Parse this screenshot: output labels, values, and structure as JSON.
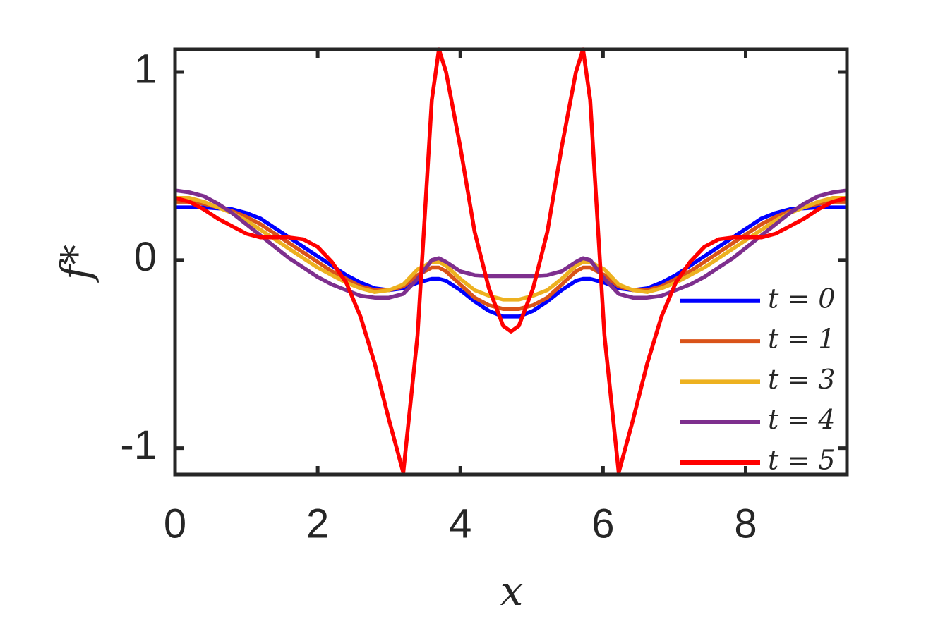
{
  "chart_data": {
    "type": "line",
    "xlabel": "x",
    "ylabel": "f*",
    "x": [
      0,
      0.2,
      0.4,
      0.6,
      0.8,
      1.0,
      1.2,
      1.4,
      1.6,
      1.8,
      2.0,
      2.2,
      2.4,
      2.6,
      2.8,
      3.0,
      3.2,
      3.4,
      3.6,
      3.7,
      3.8,
      4.0,
      4.2,
      4.4,
      4.6,
      4.71,
      4.82,
      5.02,
      5.22,
      5.42,
      5.62,
      5.72,
      5.82,
      6.02,
      6.22,
      6.42,
      6.62,
      6.82,
      7.02,
      7.22,
      7.42,
      7.62,
      7.82,
      8.02,
      8.22,
      8.42,
      8.62,
      8.82,
      9.02,
      9.22,
      9.42
    ],
    "series": [
      {
        "name": "t = 0",
        "color": "#0000ff",
        "values": [
          0.28,
          0.28,
          0.28,
          0.275,
          0.27,
          0.25,
          0.22,
          0.17,
          0.12,
          0.07,
          0.02,
          -0.03,
          -0.08,
          -0.12,
          -0.15,
          -0.16,
          -0.15,
          -0.12,
          -0.1,
          -0.1,
          -0.11,
          -0.16,
          -0.22,
          -0.27,
          -0.3,
          -0.3,
          -0.3,
          -0.27,
          -0.22,
          -0.16,
          -0.11,
          -0.1,
          -0.1,
          -0.12,
          -0.15,
          -0.16,
          -0.15,
          -0.12,
          -0.08,
          -0.03,
          0.02,
          0.07,
          0.12,
          0.17,
          0.22,
          0.25,
          0.27,
          0.275,
          0.28,
          0.28,
          0.28
        ]
      },
      {
        "name": "t = 1",
        "color": "#d95319",
        "values": [
          0.31,
          0.31,
          0.3,
          0.28,
          0.26,
          0.23,
          0.19,
          0.14,
          0.09,
          0.04,
          -0.01,
          -0.06,
          -0.1,
          -0.14,
          -0.16,
          -0.16,
          -0.14,
          -0.08,
          -0.04,
          -0.04,
          -0.06,
          -0.13,
          -0.2,
          -0.24,
          -0.26,
          -0.26,
          -0.26,
          -0.24,
          -0.2,
          -0.13,
          -0.06,
          -0.04,
          -0.04,
          -0.08,
          -0.14,
          -0.16,
          -0.16,
          -0.14,
          -0.1,
          -0.06,
          -0.01,
          0.04,
          0.09,
          0.14,
          0.19,
          0.23,
          0.26,
          0.28,
          0.3,
          0.31,
          0.31
        ]
      },
      {
        "name": "t = 3",
        "color": "#edb120",
        "values": [
          0.33,
          0.33,
          0.31,
          0.28,
          0.25,
          0.21,
          0.16,
          0.11,
          0.06,
          0.01,
          -0.04,
          -0.08,
          -0.12,
          -0.15,
          -0.17,
          -0.16,
          -0.13,
          -0.05,
          -0.01,
          -0.01,
          -0.03,
          -0.1,
          -0.16,
          -0.19,
          -0.21,
          -0.21,
          -0.21,
          -0.19,
          -0.16,
          -0.1,
          -0.03,
          -0.01,
          -0.01,
          -0.05,
          -0.13,
          -0.16,
          -0.17,
          -0.15,
          -0.12,
          -0.08,
          -0.04,
          0.01,
          0.06,
          0.11,
          0.16,
          0.21,
          0.25,
          0.28,
          0.31,
          0.33,
          0.33
        ]
      },
      {
        "name": "t = 4",
        "color": "#7e2f8e",
        "values": [
          0.37,
          0.36,
          0.34,
          0.3,
          0.25,
          0.19,
          0.13,
          0.07,
          0.01,
          -0.04,
          -0.09,
          -0.13,
          -0.16,
          -0.19,
          -0.2,
          -0.2,
          -0.18,
          -0.1,
          0,
          0.01,
          -0.01,
          -0.06,
          -0.08,
          -0.085,
          -0.085,
          -0.085,
          -0.085,
          -0.085,
          -0.08,
          -0.06,
          -0.01,
          0.01,
          0,
          -0.1,
          -0.18,
          -0.2,
          -0.2,
          -0.19,
          -0.16,
          -0.13,
          -0.09,
          -0.04,
          0.01,
          0.07,
          0.13,
          0.19,
          0.25,
          0.3,
          0.34,
          0.36,
          0.37
        ]
      },
      {
        "name": "t = 5",
        "color": "#ff0000",
        "values": [
          0.33,
          0.31,
          0.27,
          0.22,
          0.18,
          0.14,
          0.12,
          0.12,
          0.12,
          0.11,
          0.07,
          -0.01,
          -0.12,
          -0.3,
          -0.55,
          -0.85,
          -1.13,
          -0.4,
          0.85,
          1.12,
          1.0,
          0.6,
          0.15,
          -0.15,
          -0.35,
          -0.38,
          -0.35,
          -0.15,
          0.15,
          0.6,
          1.0,
          1.12,
          0.85,
          -0.4,
          -1.13,
          -0.85,
          -0.55,
          -0.3,
          -0.12,
          -0.01,
          0.07,
          0.11,
          0.12,
          0.12,
          0.12,
          0.14,
          0.18,
          0.22,
          0.27,
          0.31,
          0.33
        ]
      }
    ],
    "xlim": [
      0,
      9.42
    ],
    "ylim": [
      -1.14,
      1.12
    ],
    "xticks": [
      0,
      2,
      4,
      6,
      8
    ],
    "yticks": [
      -1,
      0,
      1
    ],
    "legend": "lower-right"
  }
}
